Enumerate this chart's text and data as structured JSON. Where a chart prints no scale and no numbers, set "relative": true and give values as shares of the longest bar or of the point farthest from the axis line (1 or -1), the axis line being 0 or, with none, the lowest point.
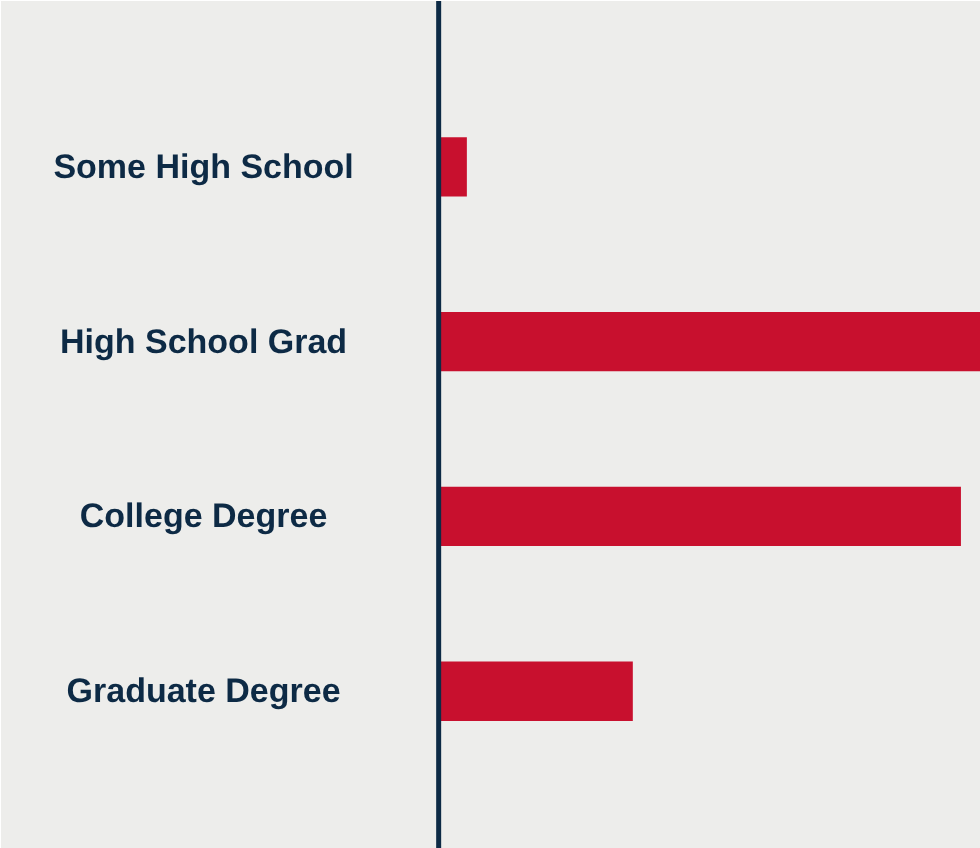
{
  "chart_data": {
    "type": "bar",
    "orientation": "horizontal",
    "relative": true,
    "categories": [
      "Some High School",
      "High School Grad",
      "College Degree",
      "Graduate Degree"
    ],
    "values": [
      0.052,
      1,
      0.963,
      0.358
    ],
    "color": "#c8102e"
  }
}
